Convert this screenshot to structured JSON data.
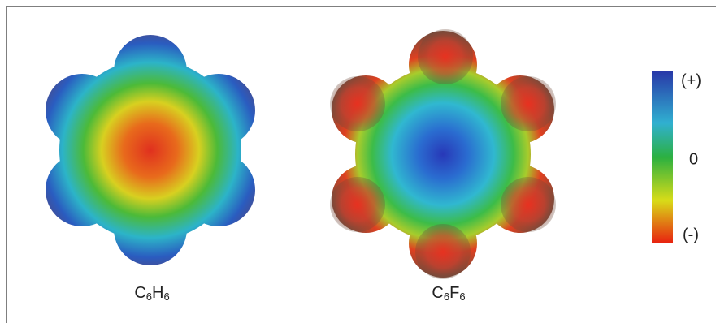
{
  "molecules": [
    {
      "label_parts": [
        "C",
        "6",
        "H",
        "6"
      ]
    },
    {
      "label_parts": [
        "C",
        "6",
        "F",
        "6"
      ]
    }
  ],
  "scale": {
    "top": "(+)",
    "middle": "0",
    "bottom": "(-)"
  }
}
